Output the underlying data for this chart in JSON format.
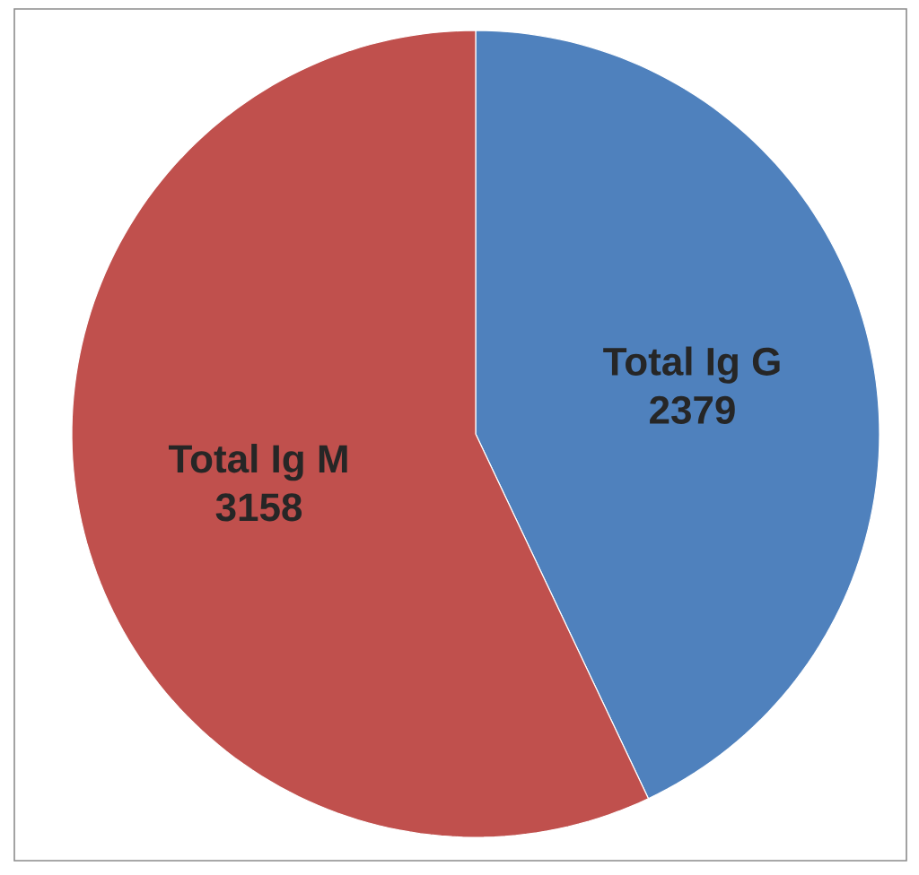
{
  "chart_data": {
    "type": "pie",
    "categories": [
      "Total Ig G",
      "Total Ig M"
    ],
    "values": [
      2379,
      3158
    ],
    "colors": [
      "#4f81bd",
      "#c0504d"
    ],
    "data_labels": true
  }
}
